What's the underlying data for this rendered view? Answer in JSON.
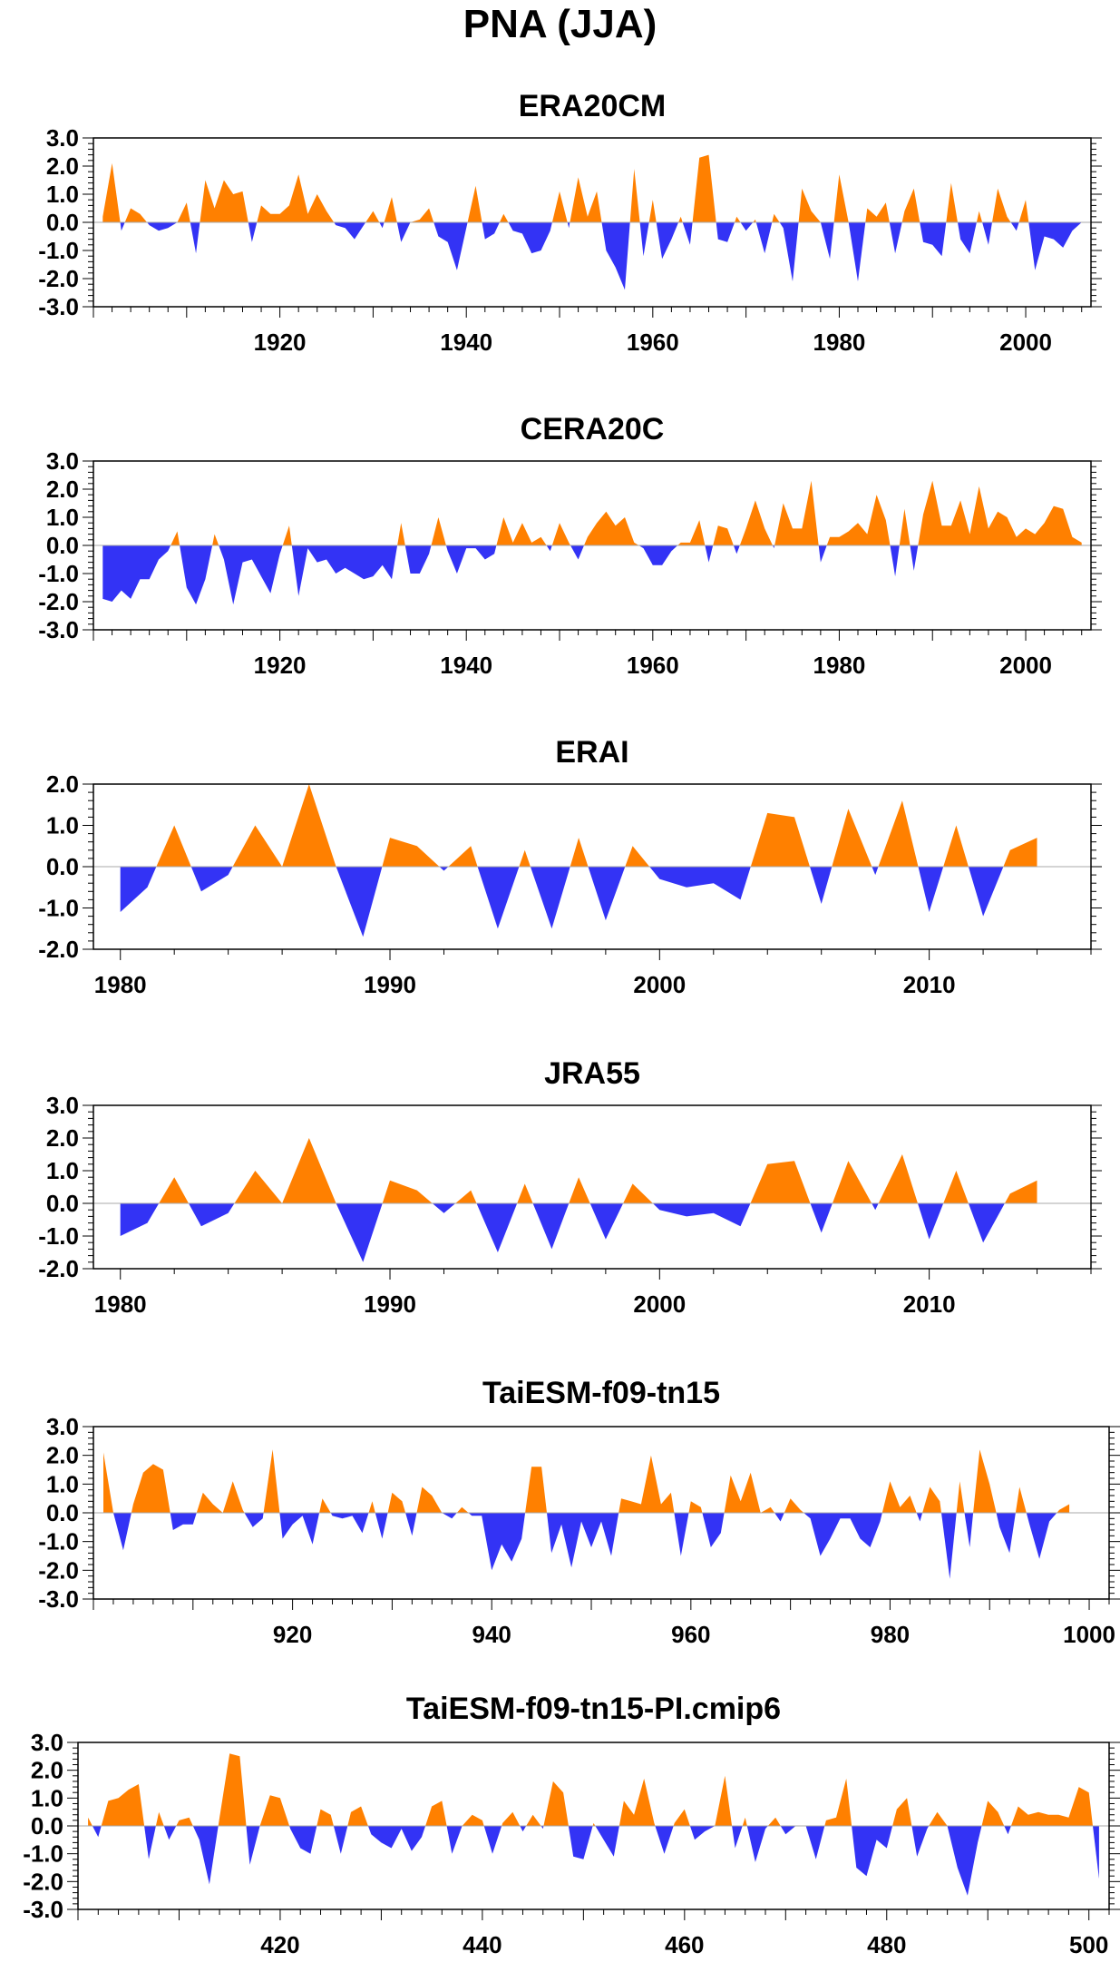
{
  "figure": {
    "title": "PNA (JJA)"
  },
  "colors": {
    "positive": "#FF8000",
    "negative": "#3333F5",
    "axis": "#000000"
  },
  "chart_data": [
    {
      "type": "area",
      "title": "ERA20CM",
      "x_start": 1901,
      "x_step": 1,
      "xlim": [
        1900,
        2007
      ],
      "ylim": [
        -3,
        3
      ],
      "yticks": [
        -3,
        -2,
        -1,
        0,
        1,
        2,
        3
      ],
      "ytick_labels": [
        "-3.0",
        "-2.0",
        "-1.0",
        "0.0",
        "1.0",
        "2.0",
        "3.0"
      ],
      "xticks": [
        1920,
        1940,
        1960,
        1980,
        2000
      ],
      "xtick_labels": [
        "1920",
        "1940",
        "1960",
        "1980",
        "2000"
      ],
      "values": [
        0.2,
        2.1,
        -0.3,
        0.5,
        0.3,
        -0.1,
        -0.3,
        -0.2,
        0.0,
        0.7,
        -1.1,
        1.5,
        0.5,
        1.5,
        1.0,
        1.1,
        -0.7,
        0.6,
        0.3,
        0.3,
        0.6,
        1.7,
        0.3,
        1.0,
        0.4,
        -0.1,
        -0.2,
        -0.6,
        -0.1,
        0.4,
        -0.2,
        0.9,
        -0.7,
        0.0,
        0.1,
        0.5,
        -0.5,
        -0.7,
        -1.7,
        -0.2,
        1.3,
        -0.6,
        -0.4,
        0.3,
        -0.3,
        -0.4,
        -1.1,
        -1.0,
        -0.3,
        1.1,
        -0.2,
        1.6,
        0.2,
        1.1,
        -1.0,
        -1.6,
        -2.4,
        1.9,
        -1.2,
        0.8,
        -1.3,
        -0.6,
        0.2,
        -0.8,
        2.3,
        2.4,
        -0.6,
        -0.7,
        0.2,
        -0.3,
        0.1,
        -1.1,
        0.3,
        -0.2,
        -2.1,
        1.2,
        0.4,
        0.0,
        -1.3,
        1.7,
        0.0,
        -2.1,
        0.5,
        0.2,
        0.7,
        -1.1,
        0.4,
        1.2,
        -0.7,
        -0.8,
        -1.2,
        1.4,
        -0.6,
        -1.1,
        0.4,
        -0.8,
        1.2,
        0.2,
        -0.3,
        0.8,
        -1.7,
        -0.5,
        -0.6,
        -0.9,
        -0.3,
        0.0
      ]
    },
    {
      "type": "area",
      "title": "CERA20C",
      "x_start": 1901,
      "x_step": 1,
      "xlim": [
        1900,
        2007
      ],
      "ylim": [
        -3,
        3
      ],
      "yticks": [
        -3,
        -2,
        -1,
        0,
        1,
        2,
        3
      ],
      "ytick_labels": [
        "-3.0",
        "-2.0",
        "-1.0",
        "0.0",
        "1.0",
        "2.0",
        "3.0"
      ],
      "xticks": [
        1920,
        1940,
        1960,
        1980,
        2000
      ],
      "xtick_labels": [
        "1920",
        "1940",
        "1960",
        "1980",
        "2000"
      ],
      "values": [
        -1.9,
        -2.0,
        -1.6,
        -1.9,
        -1.2,
        -1.2,
        -0.5,
        -0.2,
        0.5,
        -1.5,
        -2.1,
        -1.2,
        0.4,
        -0.5,
        -2.1,
        -0.6,
        -0.5,
        -1.1,
        -1.7,
        -0.3,
        0.7,
        -1.8,
        -0.1,
        -0.6,
        -0.5,
        -1.0,
        -0.8,
        -1.0,
        -1.2,
        -1.1,
        -0.7,
        -1.2,
        0.8,
        -1.0,
        -1.0,
        -0.3,
        1.0,
        -0.2,
        -1.0,
        -0.1,
        -0.1,
        -0.5,
        -0.3,
        1.0,
        0.1,
        0.8,
        0.1,
        0.3,
        -0.2,
        0.8,
        0.1,
        -0.5,
        0.3,
        0.8,
        1.2,
        0.7,
        1.0,
        0.1,
        -0.1,
        -0.7,
        -0.7,
        -0.2,
        0.1,
        0.1,
        0.9,
        -0.6,
        0.7,
        0.6,
        -0.3,
        0.6,
        1.6,
        0.6,
        -0.1,
        1.5,
        0.6,
        0.6,
        2.3,
        -0.6,
        0.3,
        0.3,
        0.5,
        0.8,
        0.4,
        1.8,
        0.9,
        -1.1,
        1.3,
        -0.9,
        1.1,
        2.3,
        0.7,
        0.7,
        1.6,
        0.4,
        2.1,
        0.6,
        1.2,
        1.0,
        0.3,
        0.6,
        0.4,
        0.8,
        1.4,
        1.3,
        0.3,
        0.1
      ]
    },
    {
      "type": "area",
      "title": "ERAI",
      "x_start": 1980,
      "x_step": 1,
      "xlim": [
        1979,
        2016
      ],
      "ylim": [
        -2,
        2
      ],
      "yticks": [
        -2,
        -1,
        0,
        1,
        2
      ],
      "ytick_labels": [
        "-2.0",
        "-1.0",
        "0.0",
        "1.0",
        "2.0"
      ],
      "xticks": [
        1980,
        1990,
        2000,
        2010
      ],
      "xtick_labels": [
        "1980",
        "1990",
        "2000",
        "2010"
      ],
      "values": [
        -1.1,
        -0.5,
        1.0,
        -0.6,
        -0.2,
        1.0,
        0.0,
        2.0,
        0.0,
        -1.7,
        0.7,
        0.5,
        -0.1,
        0.5,
        -1.5,
        0.4,
        -1.5,
        0.7,
        -1.3,
        0.5,
        -0.3,
        -0.5,
        -0.4,
        -0.8,
        1.3,
        1.2,
        -0.9,
        1.4,
        -0.2,
        1.6,
        -1.1,
        1.0,
        -1.2,
        0.4,
        0.7
      ]
    },
    {
      "type": "area",
      "title": "JRA55",
      "x_start": 1980,
      "x_step": 1,
      "xlim": [
        1979,
        2016
      ],
      "ylim": [
        -2,
        3
      ],
      "yticks": [
        -2,
        -1,
        0,
        1,
        2,
        3
      ],
      "ytick_labels": [
        "-2.0",
        "-1.0",
        "0.0",
        "1.0",
        "2.0",
        "3.0"
      ],
      "xticks": [
        1980,
        1990,
        2000,
        2010
      ],
      "xtick_labels": [
        "1980",
        "1990",
        "2000",
        "2010"
      ],
      "values": [
        -1.0,
        -0.6,
        0.8,
        -0.7,
        -0.3,
        1.0,
        0.0,
        2.0,
        0.0,
        -1.8,
        0.7,
        0.4,
        -0.3,
        0.4,
        -1.5,
        0.6,
        -1.4,
        0.8,
        -1.1,
        0.6,
        -0.2,
        -0.4,
        -0.3,
        -0.7,
        1.2,
        1.3,
        -0.9,
        1.3,
        -0.2,
        1.5,
        -1.1,
        1.0,
        -1.2,
        0.3,
        0.7
      ]
    },
    {
      "type": "area",
      "title": "TaiESM-f09-tn15",
      "x_start": 901,
      "x_step": 1,
      "xlim": [
        900,
        1002
      ],
      "ylim": [
        -3,
        3
      ],
      "yticks": [
        -3,
        -2,
        -1,
        0,
        1,
        2,
        3
      ],
      "ytick_labels": [
        "-3.0",
        "-2.0",
        "-1.0",
        "0.0",
        "1.0",
        "2.0",
        "3.0"
      ],
      "xticks": [
        920,
        940,
        960,
        980,
        1000
      ],
      "xtick_labels": [
        "920",
        "940",
        "960",
        "980",
        "1000"
      ],
      "values": [
        2.1,
        0.0,
        -1.3,
        0.3,
        1.4,
        1.7,
        1.5,
        -0.6,
        -0.4,
        -0.4,
        0.7,
        0.3,
        0.0,
        1.1,
        0.1,
        -0.5,
        -0.2,
        2.2,
        -0.9,
        -0.4,
        -0.1,
        -1.1,
        0.5,
        -0.1,
        -0.2,
        -0.1,
        -0.7,
        0.4,
        -0.9,
        0.7,
        0.4,
        -0.8,
        0.9,
        0.6,
        0.0,
        -0.2,
        0.2,
        -0.1,
        -0.1,
        -2.0,
        -1.1,
        -1.7,
        -0.9,
        1.6,
        1.6,
        -1.4,
        -0.4,
        -1.9,
        -0.3,
        -1.2,
        -0.3,
        -1.5,
        0.5,
        0.4,
        0.3,
        2.0,
        0.3,
        0.7,
        -1.5,
        0.4,
        0.2,
        -1.2,
        -0.7,
        1.3,
        0.4,
        1.4,
        0.0,
        0.2,
        -0.3,
        0.5,
        0.1,
        -0.2,
        -1.5,
        -0.9,
        -0.2,
        -0.2,
        -0.9,
        -1.2,
        -0.3,
        1.1,
        0.2,
        0.6,
        -0.3,
        0.9,
        0.4,
        -2.3,
        1.1,
        -1.2,
        2.2,
        1.0,
        -0.5,
        -1.4,
        0.9,
        -0.4,
        -1.6,
        -0.3,
        0.1,
        0.3
      ]
    },
    {
      "type": "area",
      "title": "TaiESM-f09-tn15-PI.cmip6",
      "x_start": 401,
      "x_step": 1,
      "xlim": [
        400,
        502
      ],
      "ylim": [
        -3,
        3
      ],
      "yticks": [
        -3,
        -2,
        -1,
        0,
        1,
        2,
        3
      ],
      "ytick_labels": [
        "-3.0",
        "-2.0",
        "-1.0",
        "0.0",
        "1.0",
        "2.0",
        "3.0"
      ],
      "xticks": [
        420,
        440,
        460,
        480,
        500
      ],
      "xtick_labels": [
        "420",
        "440",
        "460",
        "480",
        "500"
      ],
      "values": [
        0.3,
        -0.4,
        0.9,
        1.0,
        1.3,
        1.5,
        -1.2,
        0.5,
        -0.5,
        0.2,
        0.3,
        -0.5,
        -2.1,
        0.3,
        2.6,
        2.5,
        -1.4,
        0.0,
        1.1,
        1.0,
        -0.1,
        -0.8,
        -1.0,
        0.6,
        0.4,
        -1.0,
        0.5,
        0.7,
        -0.3,
        -0.6,
        -0.8,
        -0.1,
        -0.9,
        -0.4,
        0.7,
        0.9,
        -1.0,
        0.0,
        0.4,
        0.2,
        -1.0,
        0.1,
        0.5,
        -0.2,
        0.4,
        -0.1,
        1.6,
        1.2,
        -1.1,
        -1.2,
        0.1,
        -0.5,
        -1.1,
        0.9,
        0.4,
        1.7,
        0.1,
        -1.0,
        0.1,
        0.6,
        -0.5,
        -0.2,
        0.0,
        1.8,
        -0.8,
        0.3,
        -1.3,
        -0.1,
        0.3,
        -0.3,
        0.0,
        0.0,
        -1.2,
        0.2,
        0.3,
        1.7,
        -1.5,
        -1.8,
        -0.5,
        -0.8,
        0.6,
        1.0,
        -1.1,
        -0.1,
        0.5,
        0.0,
        -1.5,
        -2.5,
        -0.6,
        0.9,
        0.5,
        -0.3,
        0.7,
        0.4,
        0.5,
        0.4,
        0.4,
        0.3,
        1.4,
        1.2,
        -1.9
      ]
    }
  ]
}
